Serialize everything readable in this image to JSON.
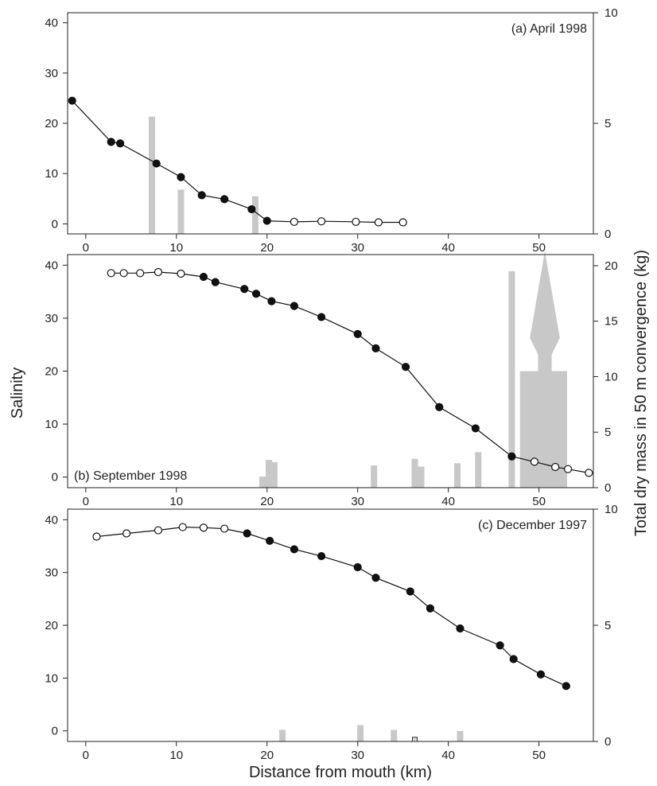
{
  "figure": {
    "ylabel_left": "Salinity",
    "ylabel_right": "Total dry mass in 50 m convergence (kg)",
    "xlabel": "Distance from mouth (km)",
    "bar_color": "#c8c8c8",
    "line_color": "#111111"
  },
  "chart_data": [
    {
      "type": "line",
      "title": "(a) April 1998",
      "xlim": [
        -2,
        56
      ],
      "xticks": [
        0,
        10,
        20,
        30,
        40,
        50
      ],
      "ylim": [
        -2,
        42
      ],
      "yticks": [
        0,
        10,
        20,
        30,
        40
      ],
      "y2lim": [
        0,
        10
      ],
      "y2ticks": [
        0,
        5,
        10
      ],
      "salinity": [
        {
          "x": -1.5,
          "y": 24.5,
          "filled": true
        },
        {
          "x": 2.8,
          "y": 16.3,
          "filled": true
        },
        {
          "x": 3.8,
          "y": 16.0,
          "filled": true
        },
        {
          "x": 7.8,
          "y": 12.0,
          "filled": true
        },
        {
          "x": 10.5,
          "y": 9.3,
          "filled": true
        },
        {
          "x": 12.8,
          "y": 5.7,
          "filled": true
        },
        {
          "x": 15.3,
          "y": 4.9,
          "filled": true
        },
        {
          "x": 18.3,
          "y": 2.9,
          "filled": true
        },
        {
          "x": 20.0,
          "y": 0.6,
          "filled": true
        },
        {
          "x": 23.0,
          "y": 0.4,
          "filled": false
        },
        {
          "x": 26.0,
          "y": 0.5,
          "filled": false
        },
        {
          "x": 29.8,
          "y": 0.4,
          "filled": false
        },
        {
          "x": 32.3,
          "y": 0.3,
          "filled": false
        },
        {
          "x": 35.0,
          "y": 0.3,
          "filled": false
        }
      ],
      "mass_bars": [
        {
          "x": 7.3,
          "value": 5.3
        },
        {
          "x": 10.5,
          "value": 2.0
        },
        {
          "x": 18.7,
          "value": 1.7
        }
      ],
      "outlined_bars": []
    },
    {
      "type": "line",
      "title": "(b) September 1998",
      "xlim": [
        -2,
        56
      ],
      "xticks": [
        0,
        10,
        20,
        30,
        40,
        50
      ],
      "ylim": [
        -2,
        42
      ],
      "yticks": [
        0,
        10,
        20,
        30,
        40
      ],
      "y2lim": [
        0,
        21
      ],
      "y2ticks": [
        0,
        5,
        10,
        15,
        20
      ],
      "salinity": [
        {
          "x": 2.8,
          "y": 38.5,
          "filled": false
        },
        {
          "x": 4.2,
          "y": 38.5,
          "filled": false
        },
        {
          "x": 6.0,
          "y": 38.5,
          "filled": false
        },
        {
          "x": 8.0,
          "y": 38.7,
          "filled": false
        },
        {
          "x": 10.5,
          "y": 38.4,
          "filled": false
        },
        {
          "x": 13.0,
          "y": 37.8,
          "filled": true
        },
        {
          "x": 14.3,
          "y": 36.8,
          "filled": true
        },
        {
          "x": 17.5,
          "y": 35.5,
          "filled": true
        },
        {
          "x": 18.8,
          "y": 34.6,
          "filled": true
        },
        {
          "x": 20.5,
          "y": 33.2,
          "filled": true
        },
        {
          "x": 23.0,
          "y": 32.3,
          "filled": true
        },
        {
          "x": 26.0,
          "y": 30.2,
          "filled": true
        },
        {
          "x": 30.0,
          "y": 27.0,
          "filled": true
        },
        {
          "x": 32.0,
          "y": 24.3,
          "filled": true
        },
        {
          "x": 35.3,
          "y": 20.8,
          "filled": true
        },
        {
          "x": 39.0,
          "y": 13.2,
          "filled": true
        },
        {
          "x": 43.0,
          "y": 9.2,
          "filled": true
        },
        {
          "x": 47.0,
          "y": 3.9,
          "filled": true
        },
        {
          "x": 49.5,
          "y": 2.9,
          "filled": false
        },
        {
          "x": 51.8,
          "y": 1.9,
          "filled": false
        },
        {
          "x": 53.2,
          "y": 1.5,
          "filled": false
        },
        {
          "x": 55.5,
          "y": 0.8,
          "filled": false
        }
      ],
      "mass_bars": [
        {
          "x": 19.5,
          "value": 1.0
        },
        {
          "x": 20.2,
          "value": 2.5
        },
        {
          "x": 20.8,
          "value": 2.3
        },
        {
          "x": 31.8,
          "value": 2.0
        },
        {
          "x": 36.3,
          "value": 2.6
        },
        {
          "x": 37.0,
          "value": 1.9
        },
        {
          "x": 41.0,
          "value": 2.2
        },
        {
          "x": 43.3,
          "value": 3.2
        },
        {
          "x": 47.0,
          "value": 19.5
        }
      ],
      "outlined_bars": [],
      "big_arrow": {
        "x_start": 47.9,
        "x_end": 53.1,
        "base": 0,
        "shaft_top": 10.5,
        "neck_top": 12.0,
        "head_base": 13.5,
        "tip": 21.3,
        "head_x_start": 49.0,
        "head_x_end": 52.3,
        "neck_x_start": 49.9,
        "neck_x_end": 51.4
      }
    },
    {
      "type": "line",
      "title": "(c) December 1997",
      "xlim": [
        -2,
        56
      ],
      "xticks": [
        0,
        10,
        20,
        30,
        40,
        50
      ],
      "ylim": [
        -2,
        42
      ],
      "yticks": [
        0,
        10,
        20,
        30,
        40
      ],
      "y2lim": [
        0,
        10
      ],
      "y2ticks": [
        0,
        5,
        10
      ],
      "salinity": [
        {
          "x": 1.2,
          "y": 36.8,
          "filled": false
        },
        {
          "x": 4.5,
          "y": 37.4,
          "filled": false
        },
        {
          "x": 8.0,
          "y": 38.0,
          "filled": false
        },
        {
          "x": 10.7,
          "y": 38.6,
          "filled": false
        },
        {
          "x": 13.0,
          "y": 38.5,
          "filled": false
        },
        {
          "x": 15.3,
          "y": 38.3,
          "filled": false
        },
        {
          "x": 17.8,
          "y": 37.4,
          "filled": true
        },
        {
          "x": 20.3,
          "y": 36.0,
          "filled": true
        },
        {
          "x": 23.0,
          "y": 34.4,
          "filled": true
        },
        {
          "x": 26.0,
          "y": 33.1,
          "filled": true
        },
        {
          "x": 30.0,
          "y": 31.0,
          "filled": true
        },
        {
          "x": 32.0,
          "y": 29.0,
          "filled": true
        },
        {
          "x": 35.8,
          "y": 26.4,
          "filled": true
        },
        {
          "x": 38.0,
          "y": 23.2,
          "filled": true
        },
        {
          "x": 41.3,
          "y": 19.4,
          "filled": true
        },
        {
          "x": 45.7,
          "y": 16.2,
          "filled": true
        },
        {
          "x": 47.2,
          "y": 13.6,
          "filled": true
        },
        {
          "x": 50.2,
          "y": 10.7,
          "filled": true
        },
        {
          "x": 53.0,
          "y": 8.5,
          "filled": true
        }
      ],
      "mass_bars": [
        {
          "x": 21.7,
          "value": 0.5
        },
        {
          "x": 30.3,
          "value": 0.7
        },
        {
          "x": 34.0,
          "value": 0.5
        },
        {
          "x": 41.3,
          "value": 0.45
        }
      ],
      "outlined_bars": [
        {
          "x": 36.3,
          "value": 0.18
        }
      ]
    }
  ]
}
